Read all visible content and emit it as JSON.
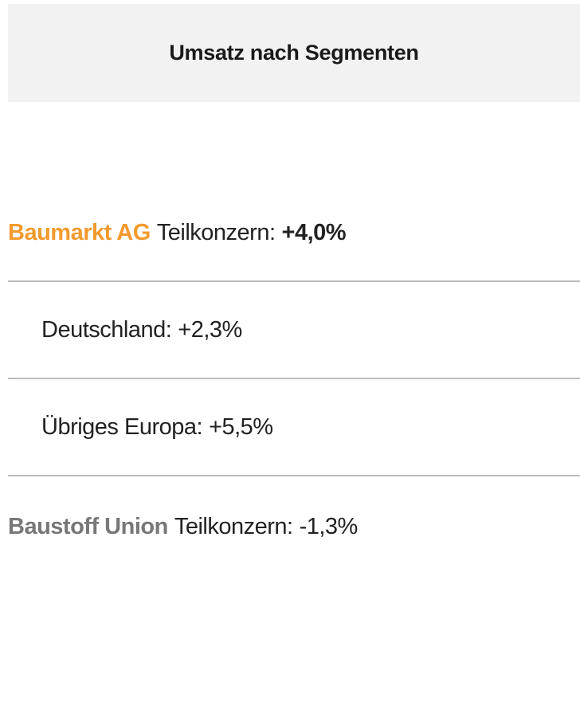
{
  "header": {
    "title": "Umsatz nach Segmenten"
  },
  "rows": [
    {
      "name": "Baumarkt AG",
      "label": "Teilkonzern:",
      "value": "+4,0%"
    },
    {
      "label": "Deutschland:",
      "value": "+2,3%"
    },
    {
      "label": "Übriges Europa:",
      "value": "+5,5%"
    },
    {
      "name": "Baustoff Union",
      "label": "Teilkonzern:",
      "value": "-1,3%"
    }
  ]
}
